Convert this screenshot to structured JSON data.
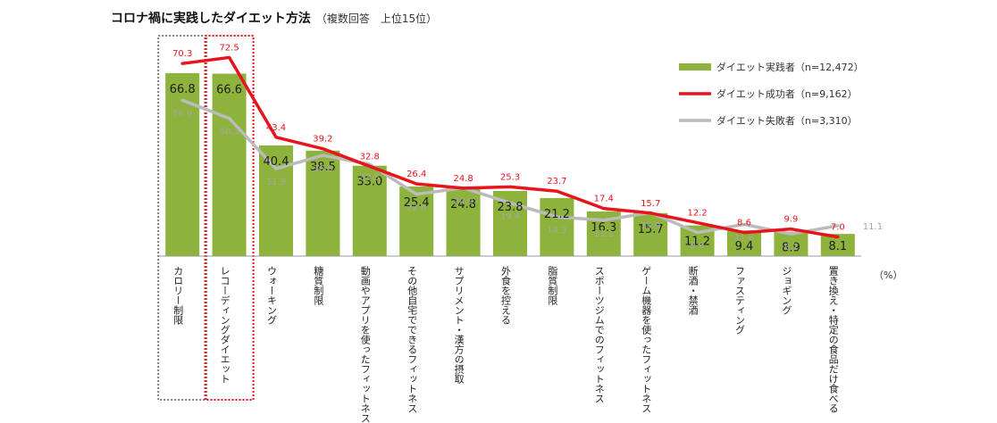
{
  "chart_data": {
    "type": "bar",
    "title": "コロナ禍に実践したダイエット方法",
    "subtitle": "（複数回答　上位15位）",
    "unit_label": "（%）",
    "ylim": [
      0,
      78
    ],
    "categories": [
      "カロリー制限",
      "レコーディングダイエット",
      "ウォーキング",
      "糖質制限",
      "動画やアプリを使ったフィットネス",
      "その他自宅でできるフィットネス",
      "サプリメント・漢方の摂取",
      "外食を控える",
      "脂質制限",
      "スポーツジムでのフィットネス",
      "ゲーム機器を使ったフィットネス",
      "断酒・禁酒",
      "ファスティング",
      "ジョギング",
      "置き換え・特定の食品だけ食べる"
    ],
    "series": [
      {
        "name": "ダイエット実践者（n=12,472）",
        "kind": "bar",
        "color": "#8DB33C",
        "values": [
          66.8,
          66.6,
          40.4,
          38.5,
          33.0,
          25.4,
          24.8,
          23.8,
          21.2,
          16.3,
          15.7,
          11.2,
          9.4,
          8.9,
          8.1
        ]
      },
      {
        "name": "ダイエット成功者（n=9,162）",
        "kind": "line",
        "color": "#E8141B",
        "values": [
          70.3,
          72.5,
          43.4,
          39.2,
          32.8,
          26.4,
          24.8,
          25.3,
          23.7,
          17.4,
          15.7,
          12.2,
          8.6,
          9.9,
          7.0
        ]
      },
      {
        "name": "ダイエット失敗者（n=3,310）",
        "kind": "line",
        "color": "#BBBBBB",
        "values": [
          56.9,
          50.3,
          31.9,
          36.8,
          33.5,
          22.6,
          24.9,
          19.4,
          14.3,
          13.1,
          15.9,
          8.6,
          11.6,
          8.1,
          11.1
        ]
      }
    ],
    "highlight_boxes": [
      {
        "category": "カロリー制限",
        "color": "#808080"
      },
      {
        "category": "レコーディングダイエット",
        "color": "#E8141B"
      }
    ],
    "legend_position": "top-right",
    "grid": false
  }
}
